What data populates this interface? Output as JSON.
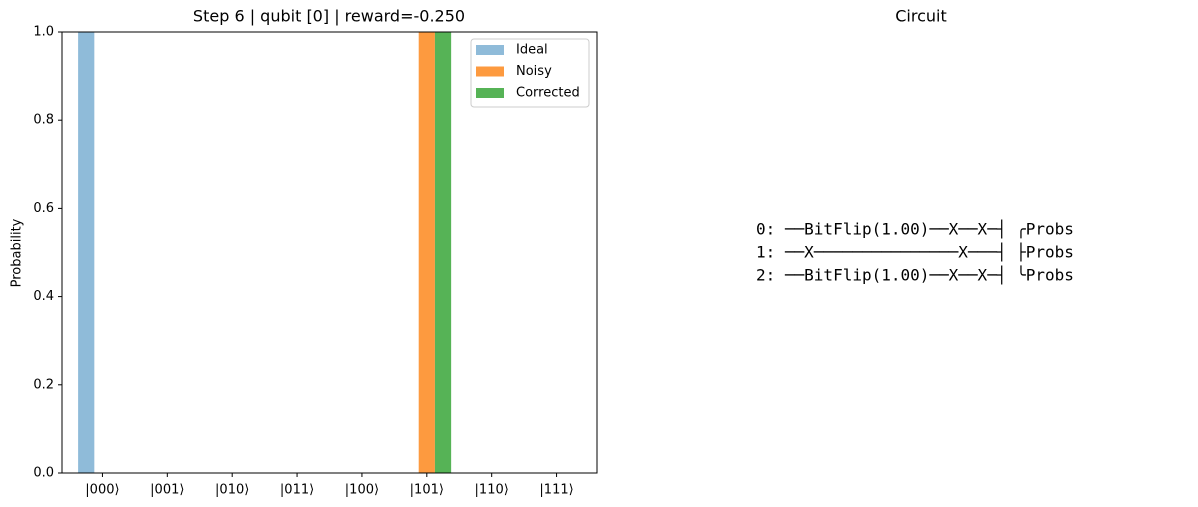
{
  "chart_data": {
    "type": "bar",
    "title": "Step 6 | qubit [0] | reward=-0.250",
    "y_label": "Probability",
    "categories": [
      "|000⟩",
      "|001⟩",
      "|010⟩",
      "|011⟩",
      "|100⟩",
      "|101⟩",
      "|110⟩",
      "|111⟩"
    ],
    "series": [
      {
        "name": "Ideal",
        "color": "#8fbbd9",
        "values": [
          1,
          0,
          0,
          0,
          0,
          0,
          0,
          0
        ]
      },
      {
        "name": "Noisy",
        "color": "#fd9a3f",
        "values": [
          0,
          0,
          0,
          0,
          0,
          1,
          0,
          0
        ]
      },
      {
        "name": "Corrected",
        "color": "#56b356",
        "values": [
          0,
          0,
          0,
          0,
          0,
          1,
          0,
          0
        ]
      }
    ],
    "ylim": [
      0,
      1
    ],
    "yticks": [
      {
        "value": 0,
        "label": "0.0"
      },
      0.2,
      0.4,
      0.6,
      0.8,
      {
        "value": 1,
        "label": "1.0"
      }
    ],
    "grid": false,
    "legend": "upper right"
  },
  "circuit": {
    "title": "Circuit",
    "lines": [
      "0: ──BitFlip(1.00)──X──X─┤ ╭Probs",
      "1: ──X───────────────X───┤ ├Probs",
      "2: ──BitFlip(1.00)──X──X─┤ ╰Probs"
    ]
  }
}
